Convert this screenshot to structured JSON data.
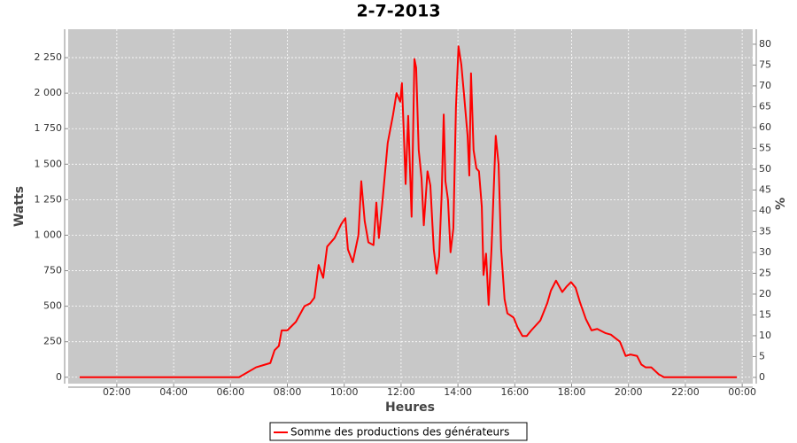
{
  "chart_data": {
    "type": "line",
    "title": "2-7-2013",
    "xlabel": "Heures",
    "ylabel": "Watts",
    "y2label": "%",
    "x": [
      0.69,
      6.3,
      6.9,
      7.23,
      7.4,
      7.55,
      7.7,
      7.8,
      8.0,
      8.3,
      8.6,
      8.8,
      8.95,
      9.1,
      9.26,
      9.4,
      9.66,
      9.9,
      10.04,
      10.13,
      10.3,
      10.5,
      10.6,
      10.72,
      10.85,
      11.03,
      11.13,
      11.22,
      11.35,
      11.53,
      11.72,
      11.84,
      11.97,
      12.03,
      12.1,
      12.16,
      12.25,
      12.37,
      12.47,
      12.53,
      12.62,
      12.72,
      12.8,
      12.93,
      13.03,
      13.15,
      13.25,
      13.34,
      13.43,
      13.5,
      13.56,
      13.65,
      13.74,
      13.84,
      13.93,
      14.02,
      14.12,
      14.21,
      14.34,
      14.4,
      14.46,
      14.55,
      14.65,
      14.74,
      14.84,
      14.9,
      14.99,
      15.08,
      15.18,
      15.33,
      15.43,
      15.52,
      15.64,
      15.74,
      15.96,
      16.1,
      16.27,
      16.42,
      16.58,
      16.9,
      17.14,
      17.27,
      17.45,
      17.67,
      17.83,
      17.98,
      18.14,
      18.29,
      18.5,
      18.7,
      18.9,
      19.2,
      19.38,
      19.7,
      19.9,
      20.07,
      20.3,
      20.45,
      20.6,
      20.8,
      21.07,
      21.25,
      23.81
    ],
    "series": [
      {
        "name": "Somme des productions des  générateurs",
        "color": "#ff0000",
        "values": [
          0,
          0,
          70,
          90,
          100,
          190,
          220,
          330,
          330,
          390,
          500,
          520,
          560,
          790,
          700,
          920,
          980,
          1080,
          1120,
          900,
          810,
          1000,
          1380,
          1100,
          950,
          930,
          1230,
          980,
          1250,
          1650,
          1850,
          2000,
          1940,
          2070,
          1700,
          1360,
          1840,
          1130,
          2240,
          2180,
          1600,
          1400,
          1070,
          1450,
          1350,
          900,
          730,
          850,
          1300,
          1850,
          1380,
          1250,
          880,
          1050,
          1900,
          2330,
          2200,
          2000,
          1700,
          1420,
          2140,
          1600,
          1470,
          1450,
          1200,
          720,
          870,
          510,
          900,
          1700,
          1500,
          900,
          550,
          450,
          420,
          350,
          290,
          290,
          330,
          400,
          520,
          610,
          680,
          600,
          640,
          670,
          630,
          530,
          410,
          330,
          340,
          310,
          300,
          250,
          150,
          160,
          150,
          90,
          70,
          70,
          20,
          0,
          0
        ]
      }
    ],
    "xlim": [
      0.29,
      24.37
    ],
    "xticks": [
      {
        "value": 2,
        "label": "02:00"
      },
      {
        "value": 4,
        "label": "04:00"
      },
      {
        "value": 6,
        "label": "06:00"
      },
      {
        "value": 8,
        "label": "08:00"
      },
      {
        "value": 10,
        "label": "10:00"
      },
      {
        "value": 12,
        "label": "12:00"
      },
      {
        "value": 14,
        "label": "14:00"
      },
      {
        "value": 16,
        "label": "16:00"
      },
      {
        "value": 18,
        "label": "18:00"
      },
      {
        "value": 20,
        "label": "20:00"
      },
      {
        "value": 22,
        "label": "22:00"
      },
      {
        "value": 24,
        "label": "00:00"
      }
    ],
    "ylim": [
      -45,
      2450
    ],
    "yticks": [
      0,
      250,
      500,
      750,
      {
        "value": 1000,
        "label": "1 000"
      },
      {
        "value": 1250,
        "label": "1 250"
      },
      {
        "value": 1500,
        "label": "1 500"
      },
      {
        "value": 1750,
        "label": "1 750"
      },
      {
        "value": 2000,
        "label": "2 000"
      },
      {
        "value": 2250,
        "label": "2 250"
      }
    ],
    "y2lim": [
      -1.5,
      83.6
    ],
    "y2ticks": [
      0,
      5,
      10,
      15,
      20,
      25,
      30,
      35,
      40,
      45,
      50,
      55,
      60,
      65,
      70,
      75,
      80
    ],
    "grid": true
  }
}
